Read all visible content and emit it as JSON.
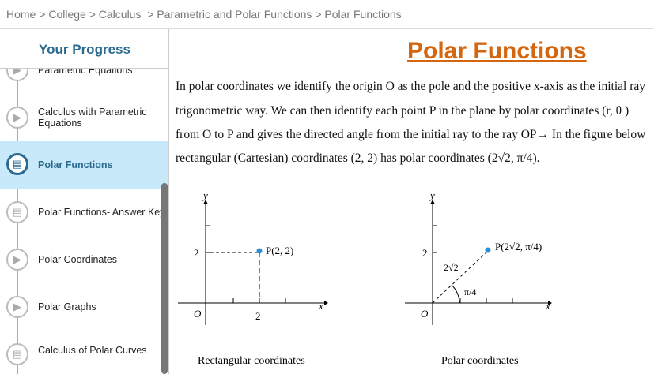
{
  "breadcrumb": [
    "Home",
    "College",
    "Calculus",
    "Parametric and Polar Functions",
    "Polar Functions"
  ],
  "sidebar": {
    "title": "Your Progress",
    "items": [
      {
        "label": "Parametric Equations",
        "icon": "play-icon"
      },
      {
        "label": "Calculus with Parametric Equations",
        "icon": "play-icon"
      },
      {
        "label": "Polar Functions",
        "icon": "document-icon",
        "active": true
      },
      {
        "label": "Polar Functions- Answer Key",
        "icon": "document-icon"
      },
      {
        "label": "Polar Coordinates",
        "icon": "play-icon"
      },
      {
        "label": "Polar Graphs",
        "icon": "play-icon"
      },
      {
        "label": "Calculus of Polar Curves",
        "icon": "document-icon"
      }
    ]
  },
  "main": {
    "title": "Polar Functions",
    "paragraph": [
      "In polar coordinates we identify the origin O as the pole and the positive x-axis as the initial ray",
      "trigonometric way. We can then identify each point P in the plane by polar coordinates (r, θ )",
      "from O to P and gives the directed angle from the initial ray to the ray OP→  In the figure below",
      "rectangular (Cartesian) coordinates (2, 2) has polar coordinates (2√2, π/4)."
    ],
    "figures": [
      {
        "caption": "Rectangular coordinates",
        "point_label": "P(2, 2)",
        "x_label": "x",
        "y_label": "y",
        "origin": "O",
        "tick_labels": [
          "2",
          "2"
        ]
      },
      {
        "caption": "Polar coordinates",
        "point_label": "P(2√2, π/4)",
        "x_label": "x",
        "y_label": "y",
        "origin": "O",
        "tick_labels": [
          "2"
        ],
        "r_label": "2√2",
        "angle_label": "π/4"
      }
    ]
  },
  "colors": {
    "accent": "#d4660f",
    "brand": "#2a6a8f",
    "active_bg": "#c8e9fa",
    "point": "#2b8fd6"
  }
}
